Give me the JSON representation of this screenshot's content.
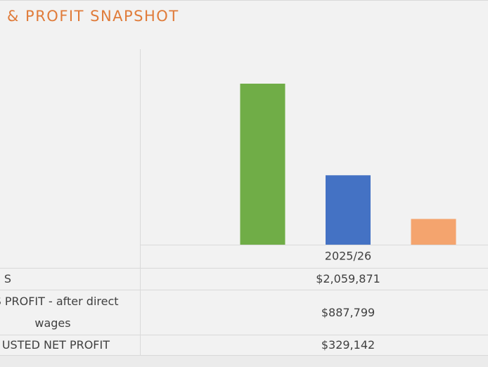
{
  "chart_data": {
    "type": "bar",
    "title": "& PROFIT SNAPSHOT",
    "categories": [
      "2025/26"
    ],
    "series": [
      {
        "name": "S",
        "color": "#70ad47",
        "values": [
          2059871
        ],
        "value_labels": [
          "$2,059,871"
        ]
      },
      {
        "name": "SS PROFIT - after direct wages",
        "color": "#4472c4",
        "values": [
          887799
        ],
        "value_labels": [
          "$887,799"
        ]
      },
      {
        "name": "USTED NET PROFIT",
        "color": "#f4a46e",
        "values": [
          329142
        ],
        "value_labels": [
          "$329,142"
        ]
      }
    ]
  }
}
